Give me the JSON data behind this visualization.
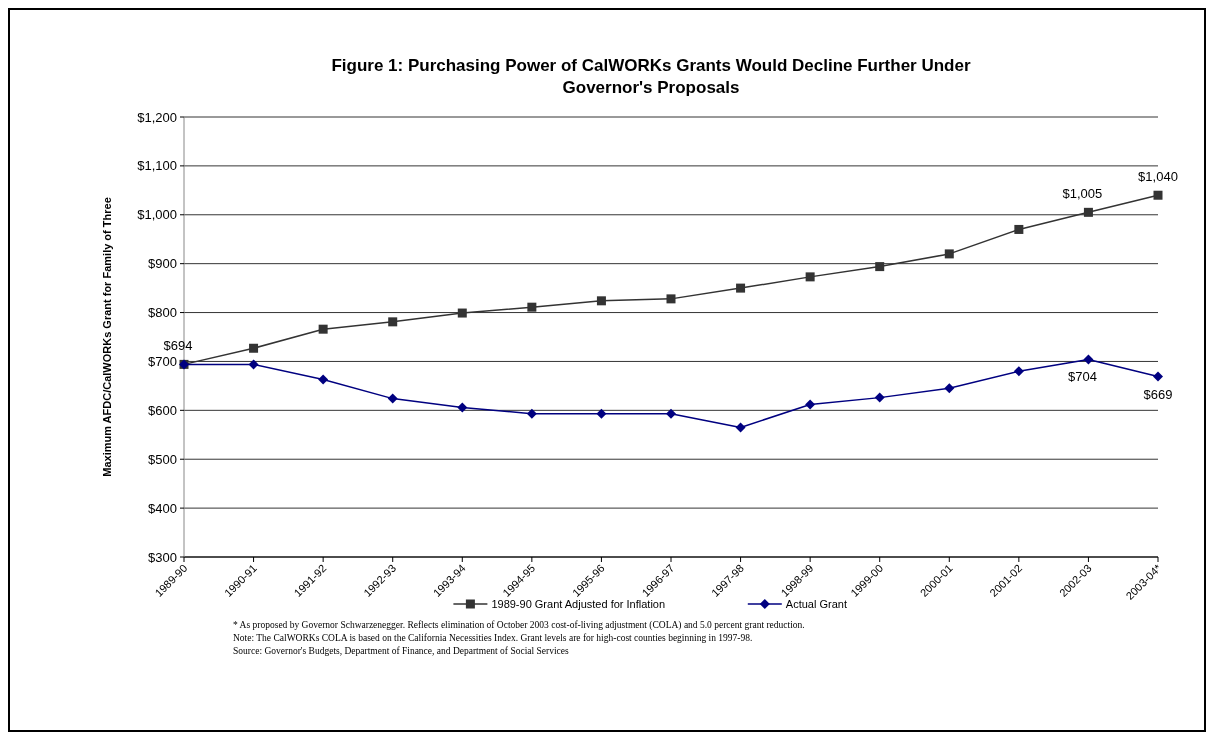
{
  "chart_data": {
    "type": "line",
    "title": "Figure 1: Purchasing Power of CalWORKs Grants Would Decline Further Under Governor's Proposals",
    "ylabel": "Maximum AFDC/CalWORKs Grant for Family of Three",
    "categories": [
      "1989-90",
      "1990-91",
      "1991-92",
      "1992-93",
      "1993-94",
      "1994-95",
      "1995-96",
      "1996-97",
      "1997-98",
      "1998-99",
      "1999-00",
      "2000-01",
      "2001-02",
      "2002-03",
      "2003-04*"
    ],
    "series": [
      {
        "name": "1989-90 Grant Adjusted for Inflation",
        "color": "#333333",
        "marker": "square",
        "values": [
          694,
          727,
          766,
          781,
          799,
          811,
          824,
          828,
          850,
          873,
          894,
          920,
          970,
          1005,
          1040
        ],
        "value_labels": [
          "$694",
          null,
          null,
          null,
          null,
          null,
          null,
          null,
          null,
          null,
          null,
          null,
          null,
          "$1,005",
          "$1,040"
        ]
      },
      {
        "name": "Actual Grant",
        "color": "#000080",
        "marker": "diamond",
        "values": [
          694,
          694,
          663,
          624,
          606,
          593,
          593,
          593,
          565,
          612,
          626,
          645,
          680,
          704,
          669
        ],
        "value_labels": [
          null,
          null,
          null,
          null,
          null,
          null,
          null,
          null,
          null,
          null,
          null,
          null,
          null,
          "$704",
          "$669"
        ]
      }
    ],
    "ylim": [
      300,
      1200
    ],
    "yticks": [
      {
        "value": 300,
        "label": "$300"
      },
      {
        "value": 400,
        "label": "$400"
      },
      {
        "value": 500,
        "label": "$500"
      },
      {
        "value": 600,
        "label": "$600"
      },
      {
        "value": 700,
        "label": "$700"
      },
      {
        "value": 800,
        "label": "$800"
      },
      {
        "value": 900,
        "label": "$900"
      },
      {
        "value": 1000,
        "label": "$1,000"
      },
      {
        "value": 1100,
        "label": "$1,100"
      },
      {
        "value": 1200,
        "label": "$1,200"
      }
    ],
    "grid": "y",
    "legend": "bottom",
    "annotations": [
      "* As proposed by Governor Schwarzenegger.  Reflects elimination of October 2003 cost-of-living adjustment (COLA) and 5.0 percent grant reduction.",
      "Note: The CalWORKs COLA is based on the California Necessities Index.  Grant levels are for high-cost counties beginning in 1997-98.",
      "Source: Governor's Budgets, Department of Finance, and Department of Social Services"
    ]
  }
}
